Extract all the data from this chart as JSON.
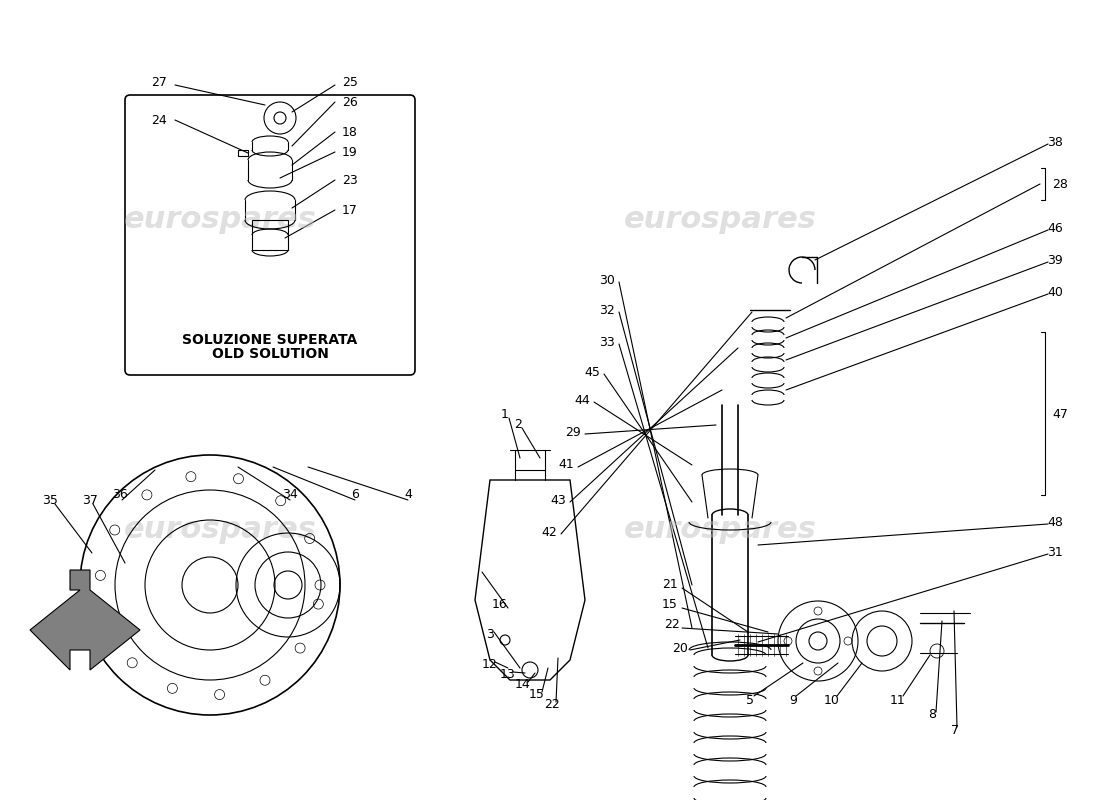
{
  "bg_color": "#ffffff",
  "watermark_text": "eurospares",
  "box_label_line1": "SOLUZIONE SUPERATA",
  "box_label_line2": "OLD SOLUTION",
  "line_color": "#000000",
  "font_size_label": 9
}
